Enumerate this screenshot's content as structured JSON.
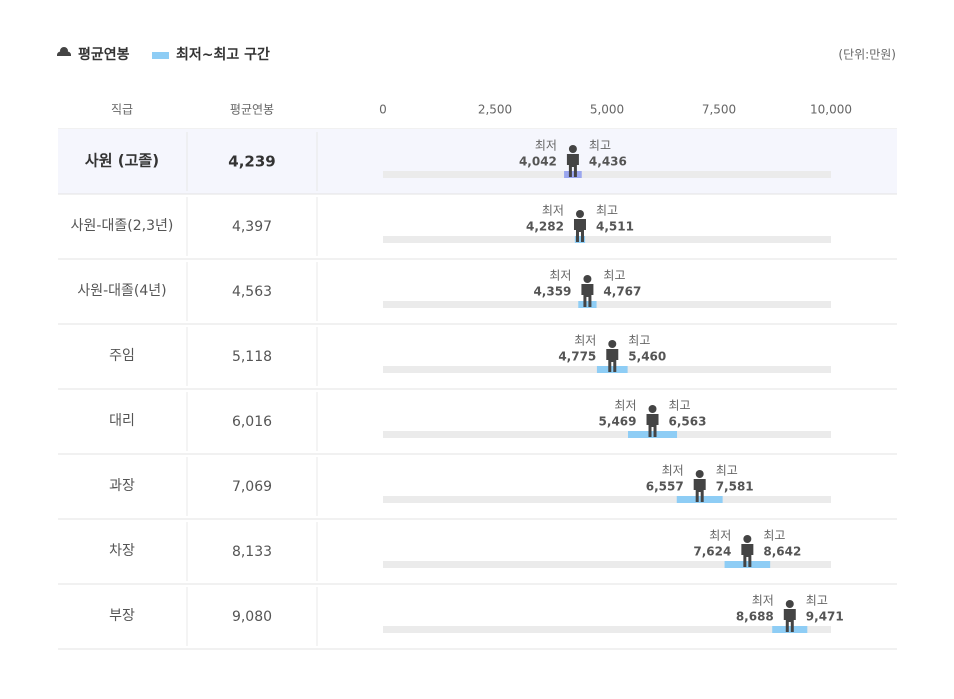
{
  "chart_data": {
    "type": "range",
    "legend": [
      {
        "label": "평균연봉",
        "color": "#444444"
      },
      {
        "label": "최저~최고 구간",
        "color": "#8ecdf5"
      }
    ],
    "unit": "(단위:만원)",
    "columns": [
      "직급",
      "평균연봉"
    ],
    "categories": [
      "사원 (고졸)",
      "사원-대졸(2,3년)",
      "사원-대졸(4년)",
      "주임",
      "대리",
      "과장",
      "차장",
      "부장"
    ],
    "series": [
      {
        "name": "평균연봉",
        "color": "#444444",
        "values": [
          4239,
          4397,
          4563,
          5118,
          6016,
          7069,
          8133,
          9080
        ],
        "value_labels": [
          "4,239",
          "4,397",
          "4,563",
          "5,118",
          "6,016",
          "7,069",
          "8,133",
          "9,080"
        ]
      },
      {
        "name": "최저",
        "color": "#8ecdf5",
        "values": [
          4042,
          4282,
          4359,
          4775,
          5469,
          6557,
          7624,
          8688
        ],
        "value_labels": [
          "4,042",
          "4,282",
          "4,359",
          "4,775",
          "5,469",
          "6,557",
          "7,624",
          "8,688"
        ]
      },
      {
        "name": "최고",
        "color": "#8ecdf5",
        "values": [
          4436,
          4511,
          4767,
          5460,
          6563,
          7581,
          8642,
          9471
        ],
        "value_labels": [
          "4,436",
          "4,511",
          "4,767",
          "5,460",
          "6,563",
          "7,581",
          "8,642",
          "9,471"
        ]
      }
    ],
    "highlight": 0,
    "highlight_color": "#9aa6ef",
    "xlim": [
      0,
      10000
    ],
    "xticks": [
      0,
      {
        "value": 2500,
        "label": "2,500"
      },
      {
        "value": 5000,
        "label": "5,000"
      },
      {
        "value": 7500,
        "label": "7,500"
      },
      {
        "value": 10000,
        "label": "10,000"
      }
    ]
  }
}
